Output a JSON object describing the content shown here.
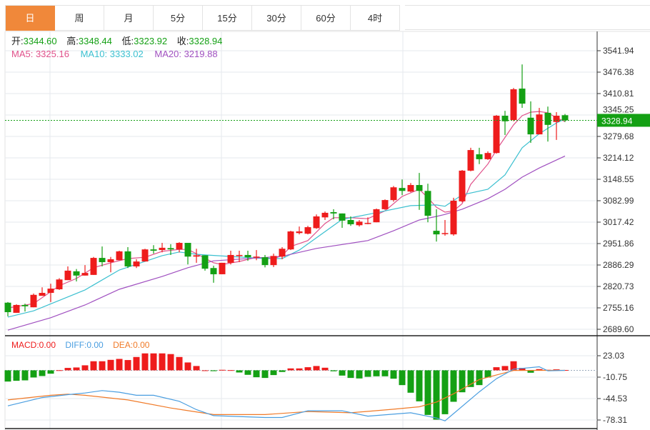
{
  "tabs": [
    {
      "label": "日",
      "active": true
    },
    {
      "label": "周"
    },
    {
      "label": "月"
    },
    {
      "label": "5分"
    },
    {
      "label": "15分"
    },
    {
      "label": "30分"
    },
    {
      "label": "60分"
    },
    {
      "label": "4时"
    }
  ],
  "ohlc": {
    "open_label": "开:",
    "open": "3344.60",
    "high_label": "高:",
    "high": "3348.44",
    "low_label": "低:",
    "low": "3323.92",
    "close_label": "收:",
    "close": "3328.94"
  },
  "ma_legend": {
    "ma5": "MA5: 3325.16",
    "ma10": "MA10: 3333.02",
    "ma20": "MA20: 3219.88"
  },
  "macd_legend": {
    "macd": "MACD:0.00",
    "diff": "DIFF:0.00",
    "dea": "DEA:0.00"
  },
  "current_price_label": "3328.94",
  "colors": {
    "up": "#ee1c1c",
    "down": "#14a014",
    "ma5": "#e0508a",
    "ma10": "#3cc0d0",
    "ma20": "#a050c0",
    "diff": "#4a9ee0",
    "dea": "#f07a28",
    "accent": "#f0883a"
  },
  "chart_data": [
    {
      "type": "candlestick",
      "title": "",
      "ylim": [
        2689.6,
        3541.94
      ],
      "yticks": [
        "3541.94",
        "3476.38",
        "3410.81",
        "3345.25",
        "3279.68",
        "3214.12",
        "3148.55",
        "3082.99",
        "3017.42",
        "2951.86",
        "2886.29",
        "2820.73",
        "2755.16",
        "2689.60"
      ],
      "ohlc": [
        [
          2771,
          2773,
          2729,
          2742
        ],
        [
          2740,
          2766,
          2740,
          2764
        ],
        [
          2764,
          2768,
          2744,
          2760
        ],
        [
          2757,
          2799,
          2757,
          2795
        ],
        [
          2792,
          2818,
          2792,
          2801
        ],
        [
          2801,
          2829,
          2773,
          2814
        ],
        [
          2812,
          2846,
          2810,
          2842
        ],
        [
          2840,
          2882,
          2840,
          2869
        ],
        [
          2867,
          2874,
          2836,
          2854
        ],
        [
          2854,
          2886,
          2854,
          2862
        ],
        [
          2856,
          2911,
          2856,
          2908
        ],
        [
          2908,
          2943,
          2882,
          2895
        ],
        [
          2895,
          2911,
          2864,
          2904
        ],
        [
          2901,
          2930,
          2901,
          2928
        ],
        [
          2928,
          2941,
          2877,
          2882
        ],
        [
          2882,
          2904,
          2877,
          2897
        ],
        [
          2897,
          2936,
          2897,
          2934
        ],
        [
          2934,
          2947,
          2921,
          2930
        ],
        [
          2932,
          2954,
          2925,
          2939
        ],
        [
          2938,
          2950,
          2917,
          2934
        ],
        [
          2934,
          2956,
          2925,
          2954
        ],
        [
          2954,
          2954,
          2888,
          2912
        ],
        [
          2912,
          2936,
          2893,
          2916
        ],
        [
          2916,
          2916,
          2869,
          2875
        ],
        [
          2877,
          2884,
          2832,
          2858
        ],
        [
          2858,
          2893,
          2858,
          2893
        ],
        [
          2893,
          2930,
          2888,
          2917
        ],
        [
          2914,
          2930,
          2895,
          2917
        ],
        [
          2917,
          2930,
          2899,
          2910
        ],
        [
          2910,
          2932,
          2901,
          2912
        ],
        [
          2910,
          2917,
          2879,
          2886
        ],
        [
          2886,
          2921,
          2880,
          2914
        ],
        [
          2912,
          2941,
          2904,
          2936
        ],
        [
          2934,
          2991,
          2932,
          2989
        ],
        [
          2984,
          3004,
          2980,
          2989
        ],
        [
          2982,
          3006,
          2980,
          3002
        ],
        [
          2999,
          3041,
          2997,
          3035
        ],
        [
          3032,
          3050,
          3024,
          3046
        ],
        [
          3048,
          3057,
          3026,
          3044
        ],
        [
          3044,
          3044,
          3000,
          3022
        ],
        [
          3024,
          3035,
          3006,
          3011
        ],
        [
          3008,
          3024,
          3004,
          3019
        ],
        [
          3013,
          3032,
          3011,
          3015
        ],
        [
          3017,
          3059,
          3017,
          3057
        ],
        [
          3057,
          3087,
          3055,
          3085
        ],
        [
          3085,
          3128,
          3080,
          3124
        ],
        [
          3122,
          3148,
          3100,
          3113
        ],
        [
          3111,
          3137,
          3109,
          3131
        ],
        [
          3131,
          3168,
          3055,
          3113
        ],
        [
          3113,
          3135,
          3017,
          3037
        ],
        [
          2991,
          3057,
          2958,
          2980
        ],
        [
          2982,
          3024,
          2976,
          2984
        ],
        [
          2980,
          3092,
          2976,
          3083
        ],
        [
          3081,
          3177,
          3078,
          3175
        ],
        [
          3175,
          3245,
          3173,
          3238
        ],
        [
          3225,
          3245,
          3195,
          3210
        ],
        [
          3210,
          3234,
          3208,
          3229
        ],
        [
          3229,
          3345,
          3227,
          3343
        ],
        [
          3343,
          3358,
          3284,
          3326
        ],
        [
          3330,
          3428,
          3326,
          3424
        ],
        [
          3426,
          3500,
          3367,
          3380
        ],
        [
          3337,
          3387,
          3260,
          3286
        ],
        [
          3286,
          3367,
          3286,
          3347
        ],
        [
          3352,
          3371,
          3264,
          3315
        ],
        [
          3324,
          3354,
          3269,
          3343
        ],
        [
          3344.6,
          3348.44,
          3323.92,
          3328.94
        ]
      ],
      "ma_series": [
        {
          "name": "MA5",
          "points": [
            [
              0,
              2755
            ],
            [
              3,
              2768
            ],
            [
              6,
              2823
            ],
            [
              8,
              2845
            ],
            [
              10,
              2878
            ],
            [
              12,
              2893
            ],
            [
              14,
              2906
            ],
            [
              16,
              2910
            ],
            [
              18,
              2928
            ],
            [
              20,
              2934
            ],
            [
              21,
              2934
            ],
            [
              22,
              2921
            ],
            [
              24,
              2893
            ],
            [
              25,
              2888
            ],
            [
              27,
              2897
            ],
            [
              29,
              2910
            ],
            [
              31,
              2906
            ],
            [
              32,
              2915
            ],
            [
              33,
              2943
            ],
            [
              35,
              2961
            ],
            [
              37,
              3013
            ],
            [
              38,
              3031
            ],
            [
              40,
              3031
            ],
            [
              42,
              3028
            ],
            [
              44,
              3052
            ],
            [
              46,
              3096
            ],
            [
              48,
              3118
            ],
            [
              49,
              3092
            ],
            [
              50,
              3063
            ],
            [
              51,
              3048
            ],
            [
              52,
              3052
            ],
            [
              53,
              3074
            ],
            [
              54,
              3133
            ],
            [
              56,
              3195
            ],
            [
              57,
              3238
            ],
            [
              59,
              3315
            ],
            [
              60,
              3343
            ],
            [
              61,
              3354
            ],
            [
              62,
              3356
            ],
            [
              63,
              3352
            ],
            [
              64,
              3337
            ],
            [
              65,
              3325.16
            ]
          ]
        },
        {
          "name": "MA10",
          "points": [
            [
              0,
              2727
            ],
            [
              3,
              2746
            ],
            [
              9,
              2810
            ],
            [
              13,
              2871
            ],
            [
              18,
              2915
            ],
            [
              20,
              2926
            ],
            [
              22,
              2919
            ],
            [
              23,
              2917
            ],
            [
              30,
              2906
            ],
            [
              32,
              2906
            ],
            [
              34,
              2932
            ],
            [
              39,
              3026
            ],
            [
              42,
              3041
            ],
            [
              47,
              3068
            ],
            [
              50,
              3070
            ],
            [
              51,
              3066
            ],
            [
              53,
              3101
            ],
            [
              56,
              3118
            ],
            [
              58,
              3162
            ],
            [
              60,
              3245
            ],
            [
              62,
              3288
            ],
            [
              64,
              3321
            ],
            [
              65,
              3333.02
            ]
          ]
        },
        {
          "name": "MA20",
          "points": [
            [
              0,
              2687
            ],
            [
              5,
              2725
            ],
            [
              9,
              2764
            ],
            [
              13,
              2812
            ],
            [
              18,
              2851
            ],
            [
              21,
              2878
            ],
            [
              24,
              2899
            ],
            [
              32,
              2913
            ],
            [
              36,
              2937
            ],
            [
              42,
              2961
            ],
            [
              45,
              2991
            ],
            [
              48,
              3024
            ],
            [
              50,
              3035
            ],
            [
              51,
              3041
            ],
            [
              53,
              3057
            ],
            [
              56,
              3089
            ],
            [
              58,
              3118
            ],
            [
              60,
              3155
            ],
            [
              62,
              3183
            ],
            [
              65,
              3219.88
            ]
          ]
        }
      ]
    },
    {
      "type": "bar+line",
      "title": "MACD",
      "ylim": [
        -85,
        40
      ],
      "yticks": [
        "23.03",
        "-10.75",
        "-44.53",
        "-78.31"
      ],
      "histogram": [
        -17.7,
        -16.5,
        -15.8,
        -11.3,
        -9,
        -5.3,
        0.2,
        3.8,
        4.5,
        7.9,
        14.3,
        14.3,
        16.5,
        18,
        16.2,
        21,
        26.7,
        26.7,
        26.7,
        25.6,
        21,
        12.4,
        6.8,
        0,
        -1.3,
        0.8,
        0.3,
        -3.4,
        -7.1,
        -10.9,
        -12,
        -7.5,
        -2.6,
        3,
        3,
        4.9,
        6.8,
        4.1,
        -1.5,
        -8.3,
        -12,
        -12.8,
        -10.2,
        -9.4,
        -9.4,
        -13.2,
        -23.3,
        -35.3,
        -48.9,
        -70.3,
        -77.8,
        -69.2,
        -49.6,
        -34.6,
        -26.3,
        -23.3,
        -11.3,
        4.9,
        6.8,
        14.3,
        3.8,
        -3.8,
        1.9,
        0.8,
        1.5,
        0.5
      ],
      "diff": [
        [
          0,
          -56
        ],
        [
          4,
          -43
        ],
        [
          7,
          -38.3
        ],
        [
          9,
          -35.7
        ],
        [
          11,
          -31.9
        ],
        [
          13,
          -34.5
        ],
        [
          15,
          -39.4
        ],
        [
          17,
          -39.4
        ],
        [
          20,
          -48.8
        ],
        [
          22,
          -62
        ],
        [
          24,
          -71.4
        ],
        [
          30,
          -74.4
        ],
        [
          32,
          -74.4
        ],
        [
          35,
          -63.8
        ],
        [
          39,
          -63.8
        ],
        [
          42,
          -72.2
        ],
        [
          47,
          -66.9
        ],
        [
          50,
          -75.2
        ],
        [
          51,
          -79.7
        ],
        [
          55,
          -34
        ],
        [
          57,
          -13.2
        ],
        [
          59,
          1.9
        ],
        [
          62,
          5.6
        ],
        [
          63,
          -0.8
        ],
        [
          65,
          0
        ]
      ],
      "dea": [
        [
          0,
          -46.7
        ],
        [
          5,
          -39.4
        ],
        [
          7,
          -37.5
        ],
        [
          9,
          -39.4
        ],
        [
          14,
          -46.7
        ],
        [
          19,
          -59.4
        ],
        [
          24,
          -69.8
        ],
        [
          30,
          -69.8
        ],
        [
          35,
          -65
        ],
        [
          40,
          -66.9
        ],
        [
          45,
          -61.3
        ],
        [
          48,
          -57.5
        ],
        [
          50,
          -50
        ],
        [
          52,
          -37
        ],
        [
          55,
          -14.5
        ],
        [
          59,
          -0.3
        ],
        [
          62,
          0
        ],
        [
          65,
          0
        ]
      ]
    }
  ]
}
